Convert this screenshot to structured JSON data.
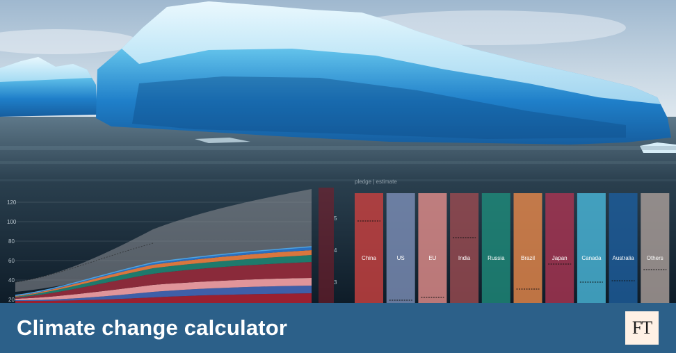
{
  "banner": {
    "title": "Climate change calculator",
    "logo_text": "FT",
    "background_color": "#2c6089"
  },
  "chart_left": {
    "type": "area",
    "y_ticks": [
      "120",
      "100",
      "80",
      "60",
      "40",
      "20"
    ],
    "ylim": [
      20,
      120
    ]
  },
  "chart_right": {
    "type": "bar",
    "header": "pledge | estimate",
    "y_ticks": [
      "5",
      "4",
      "3"
    ],
    "countries": [
      {
        "name": "China",
        "color": "#c8413f"
      },
      {
        "name": "US",
        "color": "#7b8db6"
      },
      {
        "name": "EU",
        "color": "#e08c8a"
      },
      {
        "name": "India",
        "color": "#9a4a50"
      },
      {
        "name": "Russia",
        "color": "#1e8a7a"
      },
      {
        "name": "Brazil",
        "color": "#e5874a"
      },
      {
        "name": "Japan",
        "color": "#a83552"
      },
      {
        "name": "Canada",
        "color": "#49b6d8"
      },
      {
        "name": "Australia",
        "color": "#1d5d9b"
      },
      {
        "name": "Others",
        "color": "#aa9e98"
      }
    ]
  },
  "icons": {
    "background": "iceberg-photo"
  }
}
